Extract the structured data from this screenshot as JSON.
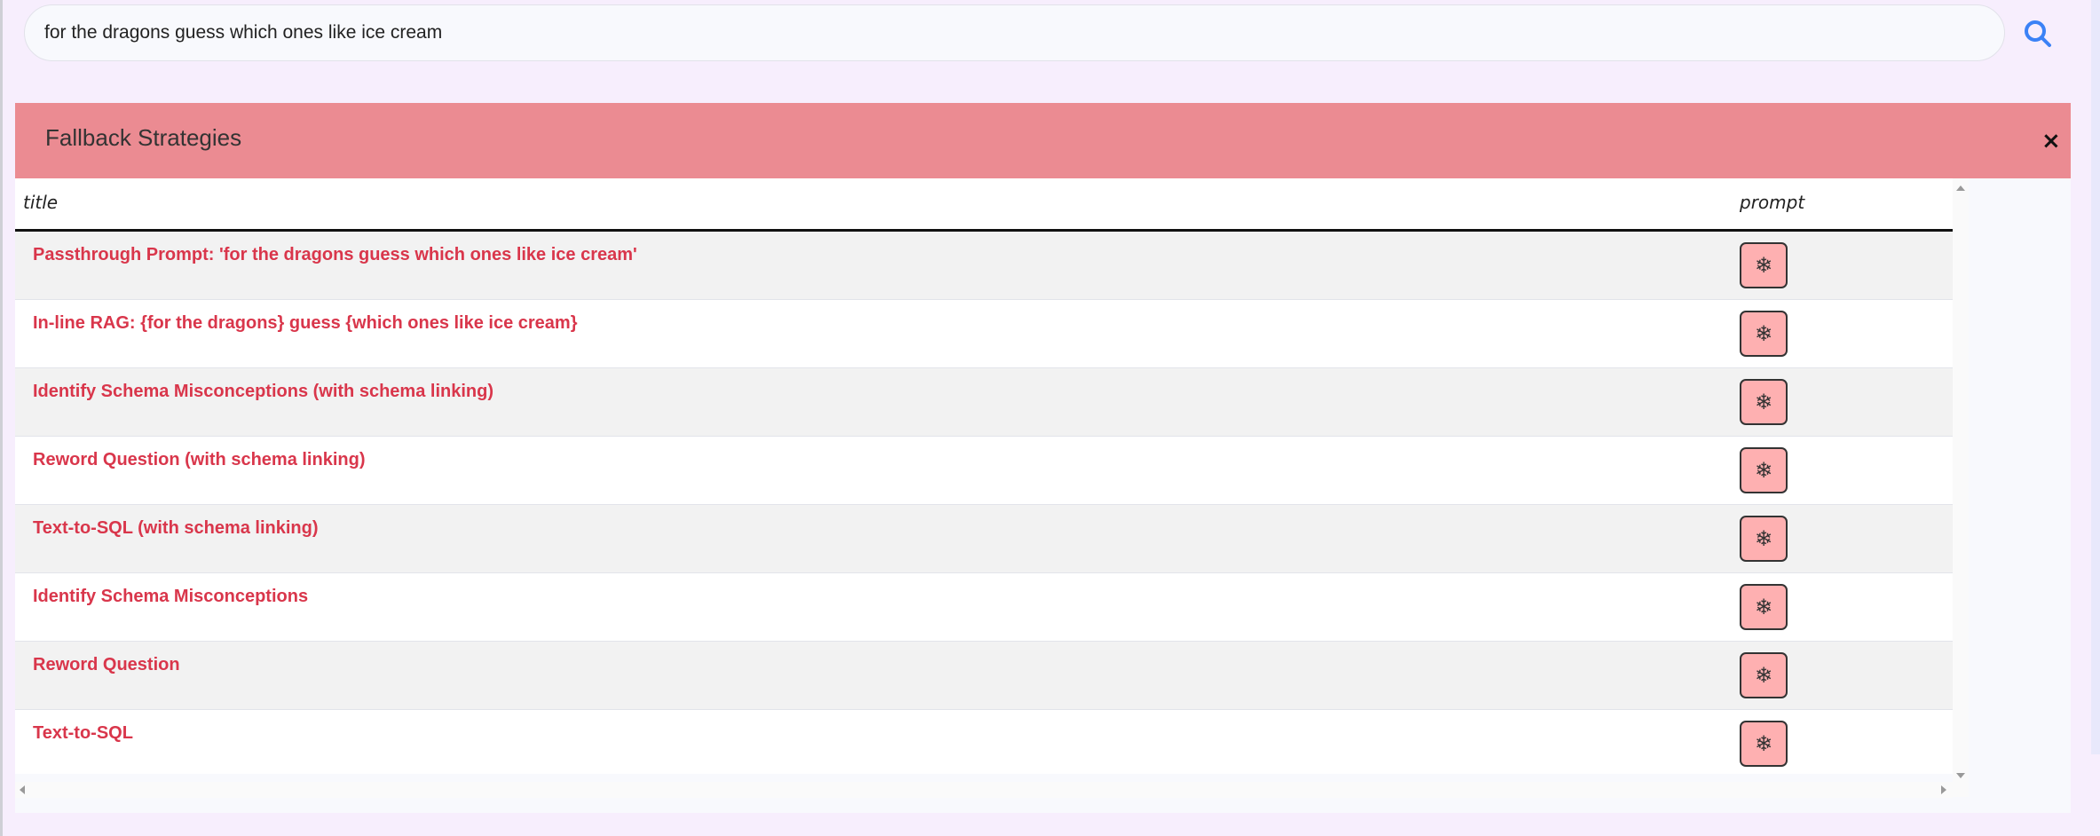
{
  "search": {
    "value": "for the dragons guess which ones like ice cream",
    "icon": "search-icon",
    "icon_color": "#3b82f6"
  },
  "panel": {
    "title": "Fallback Strategies",
    "close_label": "×",
    "header_color": "#eb8b92"
  },
  "table": {
    "columns": [
      "title",
      "prompt"
    ],
    "prompt_icon": "snowflake-icon",
    "prompt_glyph": "❄",
    "rows": [
      {
        "title": "Passthrough Prompt: 'for the dragons guess which ones like ice cream'"
      },
      {
        "title": "In-line RAG: {for the dragons} guess {which ones like ice cream}"
      },
      {
        "title": "Identify Schema Misconceptions (with schema linking)"
      },
      {
        "title": "Reword Question (with schema linking)"
      },
      {
        "title": "Text-to-SQL (with schema linking)"
      },
      {
        "title": "Identify Schema Misconceptions"
      },
      {
        "title": "Reword Question"
      },
      {
        "title": "Text-to-SQL"
      }
    ]
  },
  "colors": {
    "link": "#d9364b",
    "button": "#feb0b1",
    "background": "#f7eefd"
  }
}
